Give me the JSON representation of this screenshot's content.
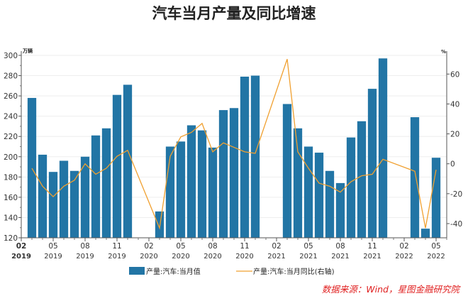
{
  "chart_data": {
    "type": "bar+line",
    "title": "汽车当月产量及同比增速",
    "source": "数据来源：Wind，星图金融研究院",
    "y_left": {
      "unit": "万辆",
      "range": [
        120,
        300
      ],
      "ticks": [
        120,
        140,
        160,
        180,
        200,
        220,
        240,
        260,
        280,
        300
      ]
    },
    "y_right": {
      "unit": "%",
      "range": [
        -49.5,
        72.5
      ],
      "ticks": [
        -40,
        -20,
        0,
        20,
        40,
        60
      ]
    },
    "x_range": [
      "2019-02",
      "2022-06"
    ],
    "x_ticks": [
      {
        "month": "2019-02",
        "label": "02",
        "year": "2019"
      },
      {
        "month": "2019-05",
        "label": "05",
        "year": "2019"
      },
      {
        "month": "2019-08",
        "label": "08",
        "year": "2019"
      },
      {
        "month": "2019-11",
        "label": "11",
        "year": "2019"
      },
      {
        "month": "2020-02",
        "label": "02",
        "year": "2020"
      },
      {
        "month": "2020-05",
        "label": "05",
        "year": "2020"
      },
      {
        "month": "2020-08",
        "label": "08",
        "year": "2020"
      },
      {
        "month": "2020-11",
        "label": "11",
        "year": "2020"
      },
      {
        "month": "2021-02",
        "label": "02",
        "year": "2021"
      },
      {
        "month": "2021-05",
        "label": "05",
        "year": "2021"
      },
      {
        "month": "2021-08",
        "label": "08",
        "year": "2021"
      },
      {
        "month": "2021-11",
        "label": "11",
        "year": "2021"
      },
      {
        "month": "2022-02",
        "label": "02",
        "year": "2022"
      },
      {
        "month": "2022-05",
        "label": "05",
        "year": "2022"
      }
    ],
    "grid": true,
    "legend_position": "bottom",
    "categories": [
      "2019-03",
      "2019-04",
      "2019-05",
      "2019-06",
      "2019-07",
      "2019-08",
      "2019-09",
      "2019-10",
      "2019-11",
      "2019-12",
      "2020-03",
      "2020-04",
      "2020-05",
      "2020-06",
      "2020-07",
      "2020-08",
      "2020-09",
      "2020-10",
      "2020-11",
      "2020-12",
      "2021-03",
      "2021-04",
      "2021-05",
      "2021-06",
      "2021-07",
      "2021-08",
      "2021-09",
      "2021-10",
      "2021-11",
      "2021-12",
      "2022-03",
      "2022-04",
      "2022-05"
    ],
    "series": [
      {
        "name": "产量:汽车:当月值",
        "type": "bar",
        "axis": "left",
        "color": "#2275a5",
        "values": [
          258,
          202,
          185,
          196,
          186,
          200,
          221,
          228,
          261,
          271,
          146,
          210,
          215,
          231,
          226,
          209,
          246,
          248,
          279,
          280,
          252,
          228,
          210,
          204,
          186,
          174,
          219,
          235,
          267,
          297,
          239,
          129,
          199
        ]
      },
      {
        "name": "产量:汽车:当月同比(右轴)",
        "type": "line",
        "axis": "right",
        "color": "#f0a030",
        "values": [
          -3,
          -15,
          -22,
          -15,
          -11,
          0,
          -7,
          -3,
          5,
          9,
          -43,
          5,
          18,
          21,
          27,
          8,
          14,
          11,
          8,
          7,
          70,
          8,
          -3,
          -13,
          -15,
          -19,
          -12,
          -8,
          -7,
          3,
          -5,
          -43,
          -4
        ]
      }
    ]
  }
}
